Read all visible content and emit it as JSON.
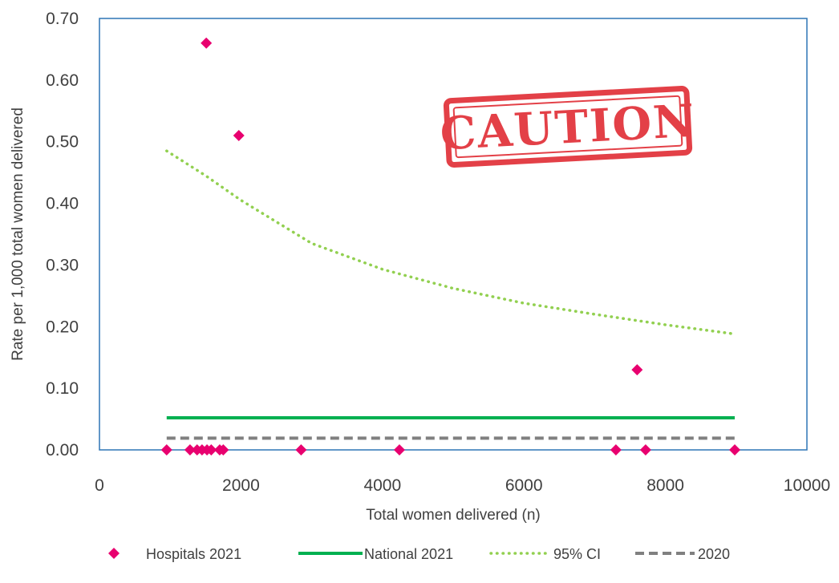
{
  "chart_data": {
    "type": "scatter",
    "xlabel": "Total women delivered (n)",
    "ylabel": "Rate per 1,000 total women delivered",
    "xlim": [
      0,
      10000
    ],
    "ylim": [
      0,
      0.7
    ],
    "x_ticks": [
      0,
      2000,
      4000,
      6000,
      8000,
      10000
    ],
    "x_tick_labels": [
      "0",
      "2000",
      "4000",
      "6000",
      "8000",
      "10000"
    ],
    "y_ticks": [
      0,
      0.1,
      0.2,
      0.3,
      0.4,
      0.5,
      0.6,
      0.7
    ],
    "y_tick_labels": [
      "0.00",
      "0.10",
      "0.20",
      "0.30",
      "0.40",
      "0.50",
      "0.60",
      "0.70"
    ],
    "grid": false,
    "legend_position": "bottom",
    "stamp_text": "CAUTION",
    "colors": {
      "hospitals": "#e8006f",
      "national": "#00b050",
      "ci": "#92d050",
      "prior": "#808080",
      "frame": "#2e75b6",
      "stamp": "#e0262e"
    },
    "series": [
      {
        "name": "Hospitals 2021",
        "kind": "scatter",
        "marker": "diamond",
        "points": [
          {
            "x": 950,
            "y": 0.0
          },
          {
            "x": 1280,
            "y": 0.0
          },
          {
            "x": 1380,
            "y": 0.0
          },
          {
            "x": 1450,
            "y": 0.0
          },
          {
            "x": 1510,
            "y": 0.66
          },
          {
            "x": 1520,
            "y": 0.0
          },
          {
            "x": 1580,
            "y": 0.0
          },
          {
            "x": 1700,
            "y": 0.0
          },
          {
            "x": 1750,
            "y": 0.0
          },
          {
            "x": 1970,
            "y": 0.51
          },
          {
            "x": 2850,
            "y": 0.0
          },
          {
            "x": 4240,
            "y": 0.0
          },
          {
            "x": 7300,
            "y": 0.0
          },
          {
            "x": 7600,
            "y": 0.13
          },
          {
            "x": 7720,
            "y": 0.0
          },
          {
            "x": 8980,
            "y": 0.0
          }
        ]
      },
      {
        "name": "National 2021",
        "kind": "line",
        "style": "solid",
        "points": [
          {
            "x": 950,
            "y": 0.052
          },
          {
            "x": 8980,
            "y": 0.052
          }
        ]
      },
      {
        "name": "95% CI",
        "kind": "line",
        "style": "dotted",
        "points": [
          {
            "x": 950,
            "y": 0.485
          },
          {
            "x": 1500,
            "y": 0.445
          },
          {
            "x": 2000,
            "y": 0.405
          },
          {
            "x": 3000,
            "y": 0.335
          },
          {
            "x": 4000,
            "y": 0.293
          },
          {
            "x": 5000,
            "y": 0.262
          },
          {
            "x": 6000,
            "y": 0.238
          },
          {
            "x": 7000,
            "y": 0.22
          },
          {
            "x": 8000,
            "y": 0.203
          },
          {
            "x": 8980,
            "y": 0.188
          }
        ]
      },
      {
        "name": "2020",
        "kind": "line",
        "style": "dashed",
        "points": [
          {
            "x": 950,
            "y": 0.019
          },
          {
            "x": 8980,
            "y": 0.019
          }
        ]
      }
    ]
  }
}
